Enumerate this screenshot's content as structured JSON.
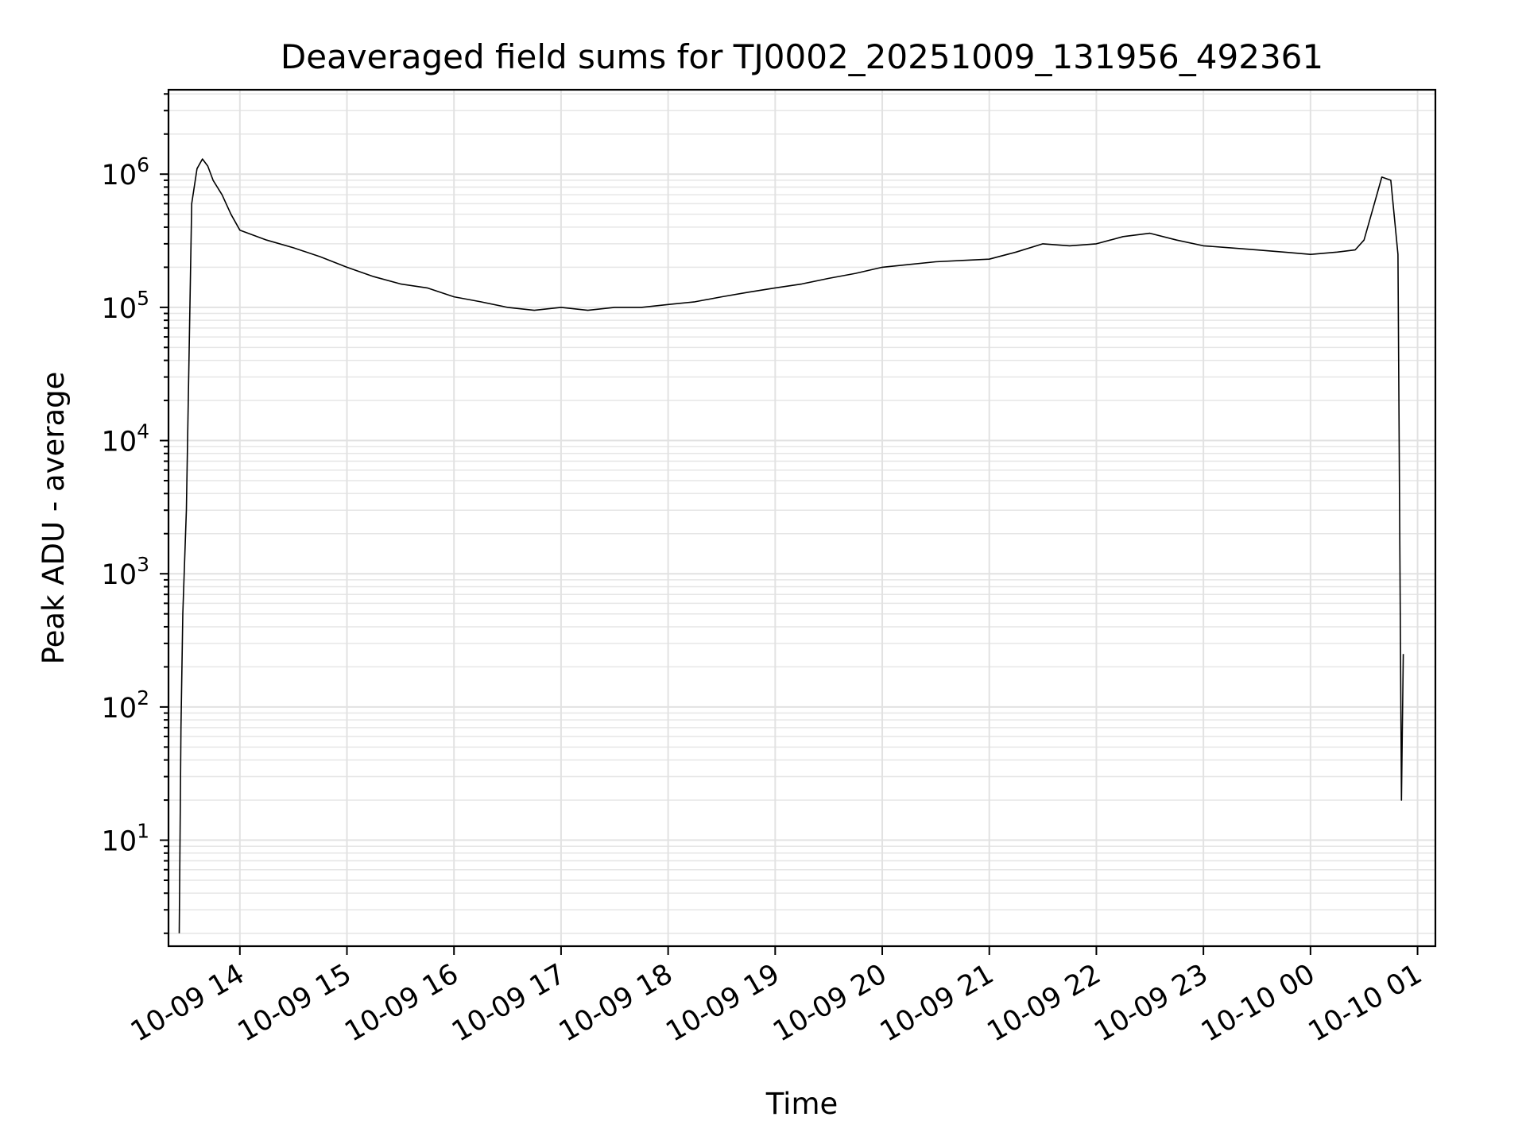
{
  "chart_data": {
    "type": "line",
    "title": "Deaveraged field sums for TJ0002_20251009_131956_492361",
    "xlabel": "Time",
    "ylabel": "Peak ADU - average",
    "y_scale": "log",
    "ylim": [
      1.6,
      4300000
    ],
    "xlim": [
      "2025-10-09T13:20",
      "2025-10-10T01:10"
    ],
    "grid": true,
    "line_color": "#000000",
    "x_ticks": [
      "2025-10-09T14:00",
      "2025-10-09T15:00",
      "2025-10-09T16:00",
      "2025-10-09T17:00",
      "2025-10-09T18:00",
      "2025-10-09T19:00",
      "2025-10-09T20:00",
      "2025-10-09T21:00",
      "2025-10-09T22:00",
      "2025-10-09T23:00",
      "2025-10-10T00:00",
      "2025-10-10T01:00"
    ],
    "x_tick_labels": [
      "10-09 14",
      "10-09 15",
      "10-09 16",
      "10-09 17",
      "10-09 18",
      "10-09 19",
      "10-09 20",
      "10-09 21",
      "10-09 22",
      "10-09 23",
      "10-10 00",
      "10-10 01"
    ],
    "y_ticks": [
      10,
      100,
      1000,
      10000,
      100000,
      1000000
    ],
    "y_tick_labels": [
      {
        "base": "10",
        "exp": "1"
      },
      {
        "base": "10",
        "exp": "2"
      },
      {
        "base": "10",
        "exp": "3"
      },
      {
        "base": "10",
        "exp": "4"
      },
      {
        "base": "10",
        "exp": "5"
      },
      {
        "base": "10",
        "exp": "6"
      }
    ],
    "series": [
      {
        "x": [
          "2025-10-09T13:26",
          "2025-10-09T13:27",
          "2025-10-09T13:28",
          "2025-10-09T13:30",
          "2025-10-09T13:33",
          "2025-10-09T13:36",
          "2025-10-09T13:39",
          "2025-10-09T13:42",
          "2025-10-09T13:45",
          "2025-10-09T13:50",
          "2025-10-09T13:55",
          "2025-10-09T14:00",
          "2025-10-09T14:15",
          "2025-10-09T14:30",
          "2025-10-09T14:45",
          "2025-10-09T15:00",
          "2025-10-09T15:15",
          "2025-10-09T15:30",
          "2025-10-09T15:45",
          "2025-10-09T16:00",
          "2025-10-09T16:15",
          "2025-10-09T16:30",
          "2025-10-09T16:45",
          "2025-10-09T17:00",
          "2025-10-09T17:15",
          "2025-10-09T17:30",
          "2025-10-09T17:45",
          "2025-10-09T18:00",
          "2025-10-09T18:15",
          "2025-10-09T18:30",
          "2025-10-09T18:45",
          "2025-10-09T19:00",
          "2025-10-09T19:15",
          "2025-10-09T19:30",
          "2025-10-09T19:45",
          "2025-10-09T20:00",
          "2025-10-09T20:15",
          "2025-10-09T20:30",
          "2025-10-09T20:45",
          "2025-10-09T21:00",
          "2025-10-09T21:15",
          "2025-10-09T21:30",
          "2025-10-09T21:45",
          "2025-10-09T22:00",
          "2025-10-09T22:15",
          "2025-10-09T22:30",
          "2025-10-09T22:45",
          "2025-10-09T23:00",
          "2025-10-09T23:15",
          "2025-10-09T23:30",
          "2025-10-09T23:45",
          "2025-10-10T00:00",
          "2025-10-10T00:15",
          "2025-10-10T00:25",
          "2025-10-10T00:30",
          "2025-10-10T00:35",
          "2025-10-10T00:40",
          "2025-10-10T00:45",
          "2025-10-10T00:49",
          "2025-10-10T00:51",
          "2025-10-10T00:52"
        ],
        "y": [
          2,
          70,
          500,
          3000,
          600000,
          1100000,
          1300000,
          1150000,
          900000,
          700000,
          500000,
          380000,
          320000,
          280000,
          240000,
          200000,
          170000,
          150000,
          140000,
          120000,
          110000,
          100000,
          95000,
          100000,
          95000,
          100000,
          100000,
          105000,
          110000,
          120000,
          130000,
          140000,
          150000,
          165000,
          180000,
          200000,
          210000,
          220000,
          225000,
          230000,
          260000,
          300000,
          290000,
          300000,
          340000,
          360000,
          320000,
          290000,
          280000,
          270000,
          260000,
          250000,
          260000,
          270000,
          320000,
          550000,
          950000,
          900000,
          250000,
          20,
          250
        ]
      }
    ]
  }
}
